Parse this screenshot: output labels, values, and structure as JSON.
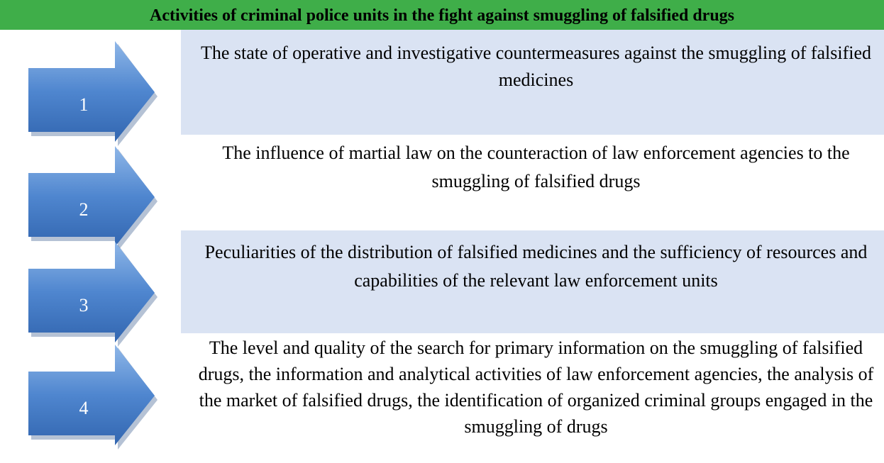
{
  "title": "Activities of criminal police units in the fight against smuggling of falsified drugs",
  "items": [
    {
      "number": "1",
      "text": "The state of operative and investigative countermeasures against the smuggling of falsified medicines"
    },
    {
      "number": "2",
      "text": "The influence of martial law on the counteraction of law enforcement agencies to the smuggling of falsified drugs"
    },
    {
      "number": "3",
      "text": "Peculiarities of the distribution of falsified medicines and the sufficiency of resources and capabilities of the relevant law enforcement units"
    },
    {
      "number": "4",
      "text": "The level and quality of the search for primary information on the smuggling of falsified drugs, the information and analytical activities of law enforcement agencies, the analysis of the market of falsified drugs, the identification of organized criminal groups engaged in the smuggling of drugs"
    }
  ]
}
